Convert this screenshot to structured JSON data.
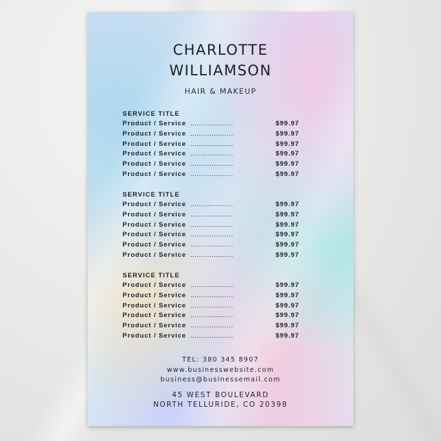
{
  "header": {
    "name_line1": "CHARLOTTE",
    "name_line2": "WILLIAMSON",
    "subtitle": "HAIR & MAKEUP"
  },
  "sections": [
    {
      "title": "SERVICE TITLE",
      "items": [
        {
          "label": "Product / Service",
          "price": "$99.97"
        },
        {
          "label": "Product / Service",
          "price": "$99.97"
        },
        {
          "label": "Product / Service",
          "price": "$99.97"
        },
        {
          "label": "Product / Service",
          "price": "$99.97"
        },
        {
          "label": "Product / Service",
          "price": "$99.97"
        },
        {
          "label": "Product / Service",
          "price": "$99.97"
        }
      ]
    },
    {
      "title": "SERVICE TITLE",
      "items": [
        {
          "label": "Product / Service",
          "price": "$99.97"
        },
        {
          "label": "Product / Service",
          "price": "$99.97"
        },
        {
          "label": "Product / Service",
          "price": "$99.97"
        },
        {
          "label": "Product / Service",
          "price": "$99.97"
        },
        {
          "label": "Product / Service",
          "price": "$99.97"
        },
        {
          "label": "Product / Service",
          "price": "$99.97"
        }
      ]
    },
    {
      "title": "SERVICE TITLE",
      "items": [
        {
          "label": "Product / Service",
          "price": "$99.97"
        },
        {
          "label": "Product / Service",
          "price": "$99.97"
        },
        {
          "label": "Product / Service",
          "price": "$99.97"
        },
        {
          "label": "Product / Service",
          "price": "$99.97"
        },
        {
          "label": "Product / Service",
          "price": "$99.97"
        },
        {
          "label": "Product / Service",
          "price": "$99.97"
        }
      ]
    }
  ],
  "leader": "....................",
  "contact": {
    "tel": "TEL: 380 345 8907",
    "website": "www.businesswebsite.com",
    "email": "business@businessemail.com",
    "address_line1": "45 WEST BOULEVARD",
    "address_line2": "NORTH TELLURIDE, CO 20398"
  },
  "colors": {
    "text": "#1d1f24",
    "background": "#e9e9e8"
  }
}
